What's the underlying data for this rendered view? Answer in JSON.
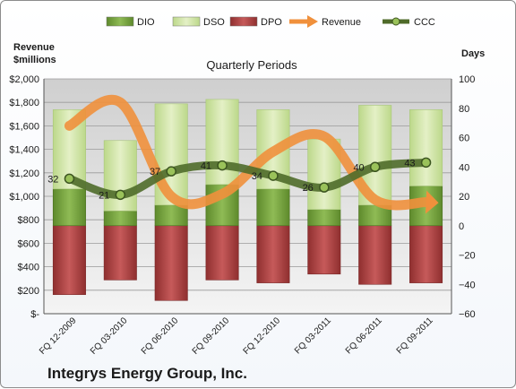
{
  "chart_data": {
    "type": "bar",
    "title": "Quarterly Periods",
    "company": "Integrys Energy Group, Inc.",
    "left_axis_label": [
      "Revenue",
      "$millions"
    ],
    "right_axis_label": "Days",
    "left_ticks": [
      "$2,000",
      "$1,800",
      "$1,600",
      "$1,400",
      "$1,200",
      "$1,000",
      "$800",
      "$600",
      "$400",
      "$200",
      "$-"
    ],
    "right_ticks": [
      "100",
      "80",
      "60",
      "40",
      "20",
      "0",
      "−20",
      "−40",
      "−60"
    ],
    "right_ylim": [
      -60,
      100
    ],
    "categories": [
      "FQ 12-2009",
      "FQ 03-2010",
      "FQ 06-2010",
      "FQ 09-2010",
      "FQ 12-2010",
      "FQ 03-2011",
      "FQ 06-2011",
      "FQ 09-2011"
    ],
    "legend": [
      "DIO",
      "DSO",
      "DPO",
      "Revenue",
      "CCC"
    ],
    "legend_position": "top",
    "series": [
      {
        "name": "DIO",
        "axis": "days",
        "values": [
          25,
          10,
          14,
          28,
          25,
          11,
          14,
          27
        ]
      },
      {
        "name": "DSO",
        "axis": "days",
        "values": [
          54,
          48,
          69,
          58,
          54,
          48,
          68,
          52
        ]
      },
      {
        "name": "DPO",
        "axis": "days",
        "values": [
          -47,
          -37,
          -51,
          -37,
          -39,
          -33,
          -40,
          -39
        ]
      },
      {
        "name": "Revenue",
        "axis": "revenue",
        "values": [
          1600,
          1800,
          1000,
          1020,
          1380,
          1510,
          970,
          950
        ]
      },
      {
        "name": "CCC",
        "axis": "days",
        "values": [
          32,
          21,
          37,
          41,
          34,
          26,
          40,
          43
        ]
      }
    ],
    "colors": {
      "DIO": "#7ea84a",
      "DSO": "#d4e6a8",
      "DPO": "#b34a4a",
      "Revenue": "#f0903c",
      "CCC": "#4f6b2a"
    }
  }
}
